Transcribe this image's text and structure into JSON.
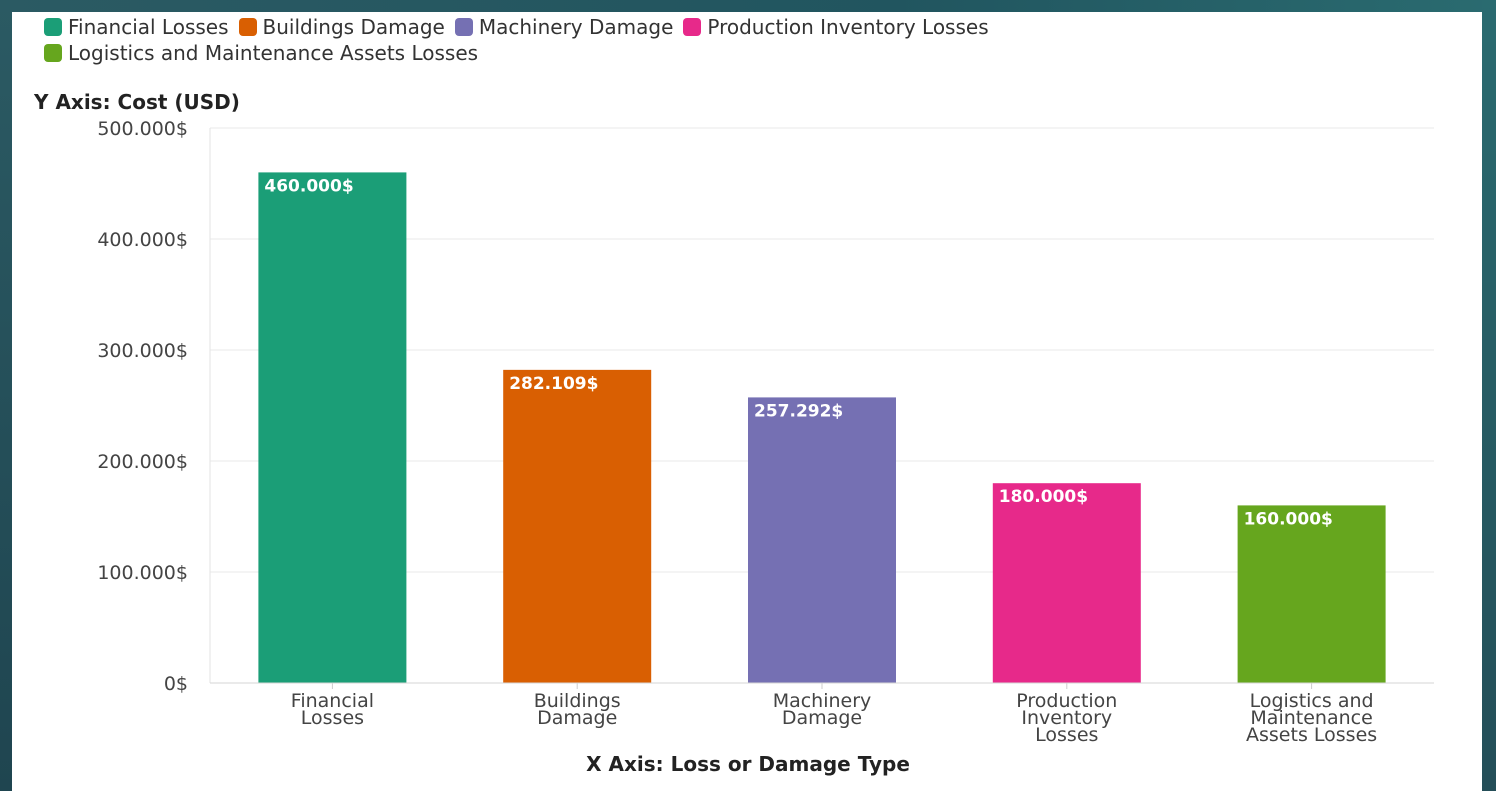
{
  "chart_data": {
    "type": "bar",
    "categories": [
      "Financial Losses",
      "Buildings Damage",
      "Machinery Damage",
      "Production Inventory Losses",
      "Logistics and Maintenance Assets Losses"
    ],
    "category_tick_lines": [
      [
        "Financial",
        "Losses"
      ],
      [
        "Buildings",
        "Damage"
      ],
      [
        "Machinery",
        "Damage"
      ],
      [
        "Production",
        "Inventory",
        "Losses"
      ],
      [
        "Logistics and",
        "Maintenance",
        "Assets Losses"
      ]
    ],
    "values": [
      460000,
      282109,
      257292,
      180000,
      160000
    ],
    "data_labels": [
      "460.000$",
      "282.109$",
      "257.292$",
      "180.000$",
      "160.000$"
    ],
    "colors": [
      "#1b9e77",
      "#d95f02",
      "#7570b3",
      "#e7298a",
      "#66a61e"
    ],
    "xlabel": "X Axis: Loss or Damage Type",
    "ylabel": "Y Axis: Cost (USD)",
    "ylim": [
      0,
      500000
    ],
    "yticks": [
      0,
      100000,
      200000,
      300000,
      400000,
      500000
    ],
    "ytick_labels": [
      "0$",
      "100.000$",
      "200.000$",
      "300.000$",
      "400.000$",
      "500.000$"
    ],
    "grid": true,
    "legend": {
      "position": "top-left",
      "entries": [
        "Financial Losses",
        "Buildings Damage",
        "Machinery Damage",
        "Production Inventory Losses",
        "Logistics and Maintenance Assets Losses"
      ]
    }
  }
}
